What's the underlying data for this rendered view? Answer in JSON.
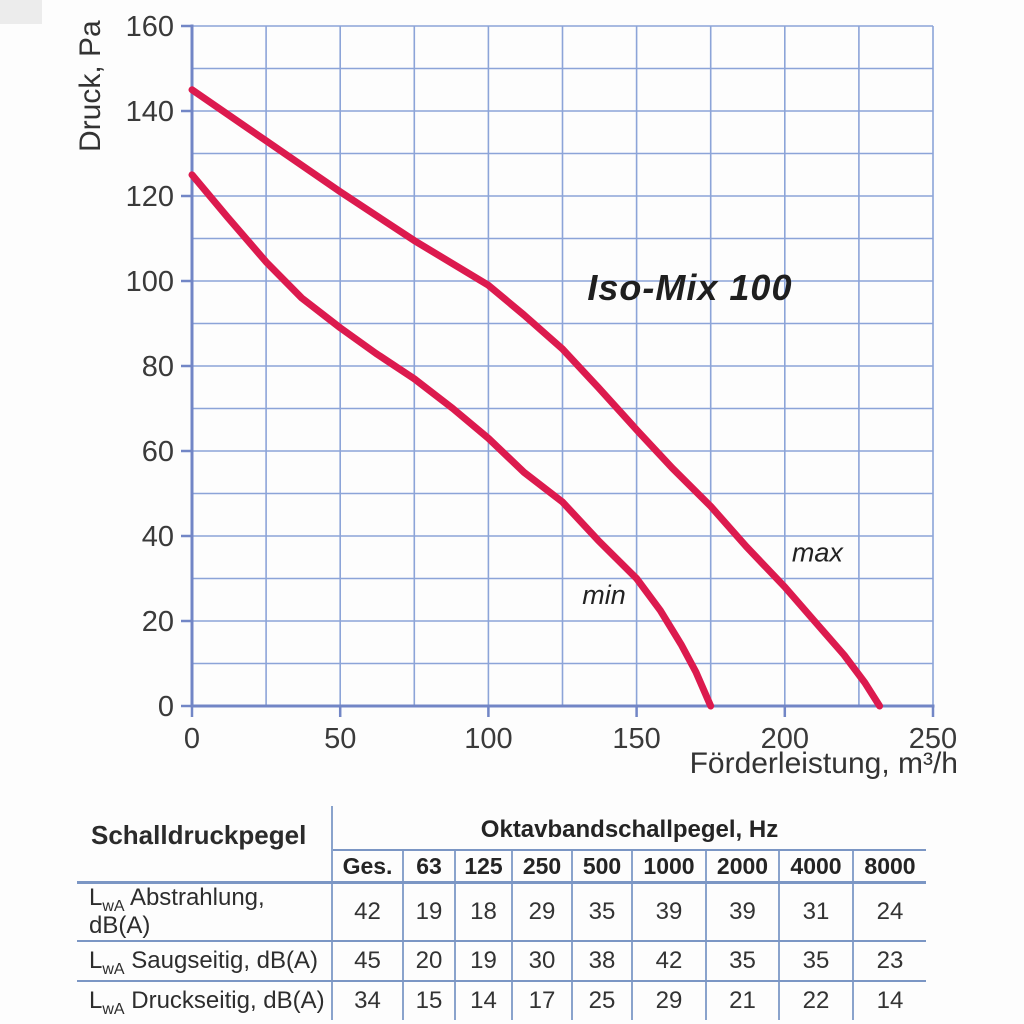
{
  "chart_data": {
    "type": "line",
    "title": "Iso-Mix 100",
    "xlabel": "Förderleistung, m³/h",
    "ylabel": "Druck, Pa",
    "xlim": [
      0,
      250
    ],
    "ylim": [
      0,
      160
    ],
    "x_major_ticks": [
      0,
      50,
      100,
      150,
      200,
      250
    ],
    "x_minor_step": 25,
    "y_major_ticks": [
      0,
      20,
      40,
      60,
      80,
      100,
      120,
      140,
      160
    ],
    "y_minor_step": 10,
    "grid": true,
    "legend_position": "none",
    "series": [
      {
        "name": "max",
        "points": [
          [
            0,
            145
          ],
          [
            25,
            133
          ],
          [
            50,
            121
          ],
          [
            75,
            109.5
          ],
          [
            100,
            99
          ],
          [
            112,
            92
          ],
          [
            125,
            84
          ],
          [
            137,
            75
          ],
          [
            150,
            65
          ],
          [
            162,
            56
          ],
          [
            175,
            47
          ],
          [
            187,
            37.5
          ],
          [
            200,
            28
          ],
          [
            210,
            20
          ],
          [
            220,
            12
          ],
          [
            227,
            5.5
          ],
          [
            232,
            0
          ]
        ]
      },
      {
        "name": "min",
        "points": [
          [
            0,
            125
          ],
          [
            12,
            115
          ],
          [
            25,
            104.5
          ],
          [
            37,
            96
          ],
          [
            50,
            89
          ],
          [
            62,
            83
          ],
          [
            75,
            77
          ],
          [
            88,
            70
          ],
          [
            100,
            63
          ],
          [
            112,
            55
          ],
          [
            125,
            48
          ],
          [
            137,
            39
          ],
          [
            150,
            30
          ],
          [
            158,
            22.5
          ],
          [
            165,
            14.5
          ],
          [
            170,
            8
          ],
          [
            175,
            0
          ]
        ]
      }
    ],
    "annotations": [
      {
        "text": "min",
        "x": 139,
        "y": 24
      },
      {
        "text": "max",
        "x": 211,
        "y": 34
      }
    ],
    "title_pos": {
      "x": 168,
      "y": 95.5
    },
    "colors": {
      "curve": "#dc1a4e",
      "grid": "#8ca4d8",
      "axis": "#7286c6",
      "text": "#3a3a3a",
      "title_text": "#1f1f1f"
    }
  },
  "table": {
    "title_col_header": "Schalldruckpegel",
    "span_header": "Oktavbandschallpegel, Hz",
    "freq_headers": [
      "Ges.",
      "63",
      "125",
      "250",
      "500",
      "1000",
      "2000",
      "4000",
      "8000"
    ],
    "rows": [
      {
        "label": {
          "base": "L",
          "sub": "wA",
          "text": "Abstrahlung, dB(A)"
        },
        "values": [
          "42",
          "19",
          "18",
          "29",
          "35",
          "39",
          "39",
          "31",
          "24"
        ]
      },
      {
        "label": {
          "base": "L",
          "sub": "wA",
          "text": "Saugseitig, dB(A)"
        },
        "values": [
          "45",
          "20",
          "19",
          "30",
          "38",
          "42",
          "35",
          "35",
          "23"
        ]
      },
      {
        "label": {
          "base": "L",
          "sub": "wA",
          "text": "Druckseitig, dB(A)"
        },
        "values": [
          "34",
          "15",
          "14",
          "17",
          "25",
          "29",
          "21",
          "22",
          "14"
        ]
      }
    ]
  }
}
